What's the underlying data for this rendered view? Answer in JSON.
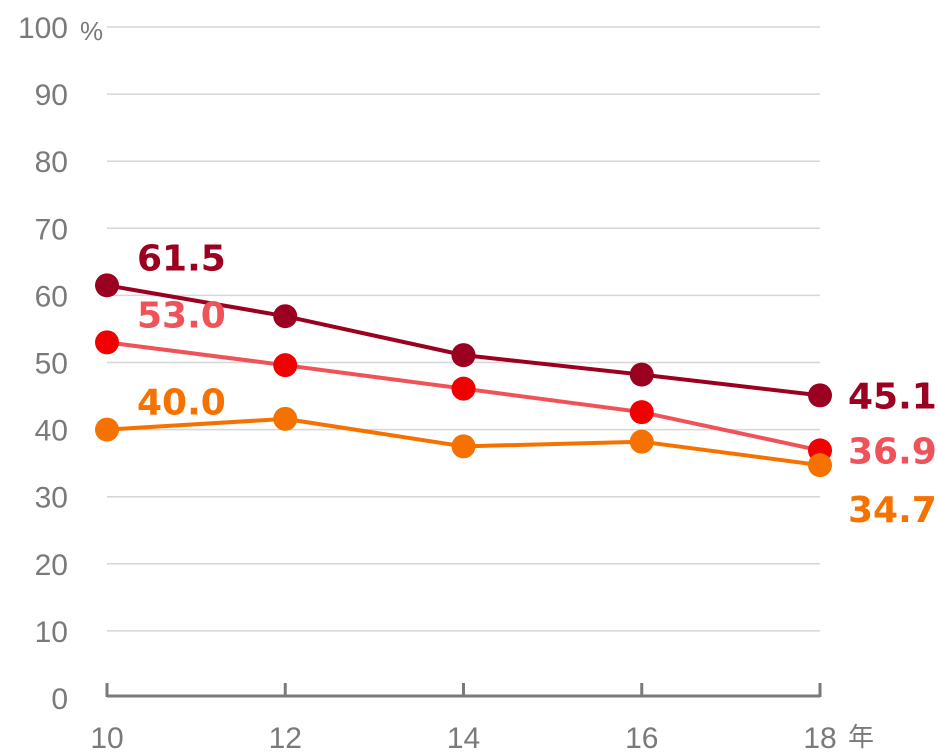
{
  "chart_data": {
    "type": "line",
    "title": "",
    "x": [
      10,
      12,
      14,
      16,
      18
    ],
    "x_tick_labels": [
      "10",
      "12",
      "14",
      "16",
      "18"
    ],
    "x_unit": "年",
    "y_tick_labels": [
      "0",
      "10",
      "20",
      "30",
      "40",
      "50",
      "60",
      "70",
      "80",
      "90",
      "100"
    ],
    "y_unit": "%",
    "ylim": [
      0,
      100
    ],
    "grid": true,
    "series": [
      {
        "color": "#9b0020",
        "values": [
          61.5,
          56.9,
          51.1,
          48.2,
          45.1
        ],
        "labels": [
          {
            "index": 0,
            "text": "61.5"
          },
          {
            "index": 4,
            "text": "45.1"
          }
        ]
      },
      {
        "color": "#f0525a",
        "marker_color": "#f00000",
        "values": [
          53.0,
          49.6,
          46.1,
          42.6,
          36.9
        ],
        "labels": [
          {
            "index": 0,
            "text": "53.0"
          },
          {
            "index": 4,
            "text": "36.9"
          }
        ]
      },
      {
        "color": "#f57200",
        "values": [
          40.0,
          41.6,
          37.5,
          38.2,
          34.7
        ],
        "labels": [
          {
            "index": 0,
            "text": "40.0"
          },
          {
            "index": 4,
            "text": "34.7"
          }
        ]
      }
    ]
  }
}
